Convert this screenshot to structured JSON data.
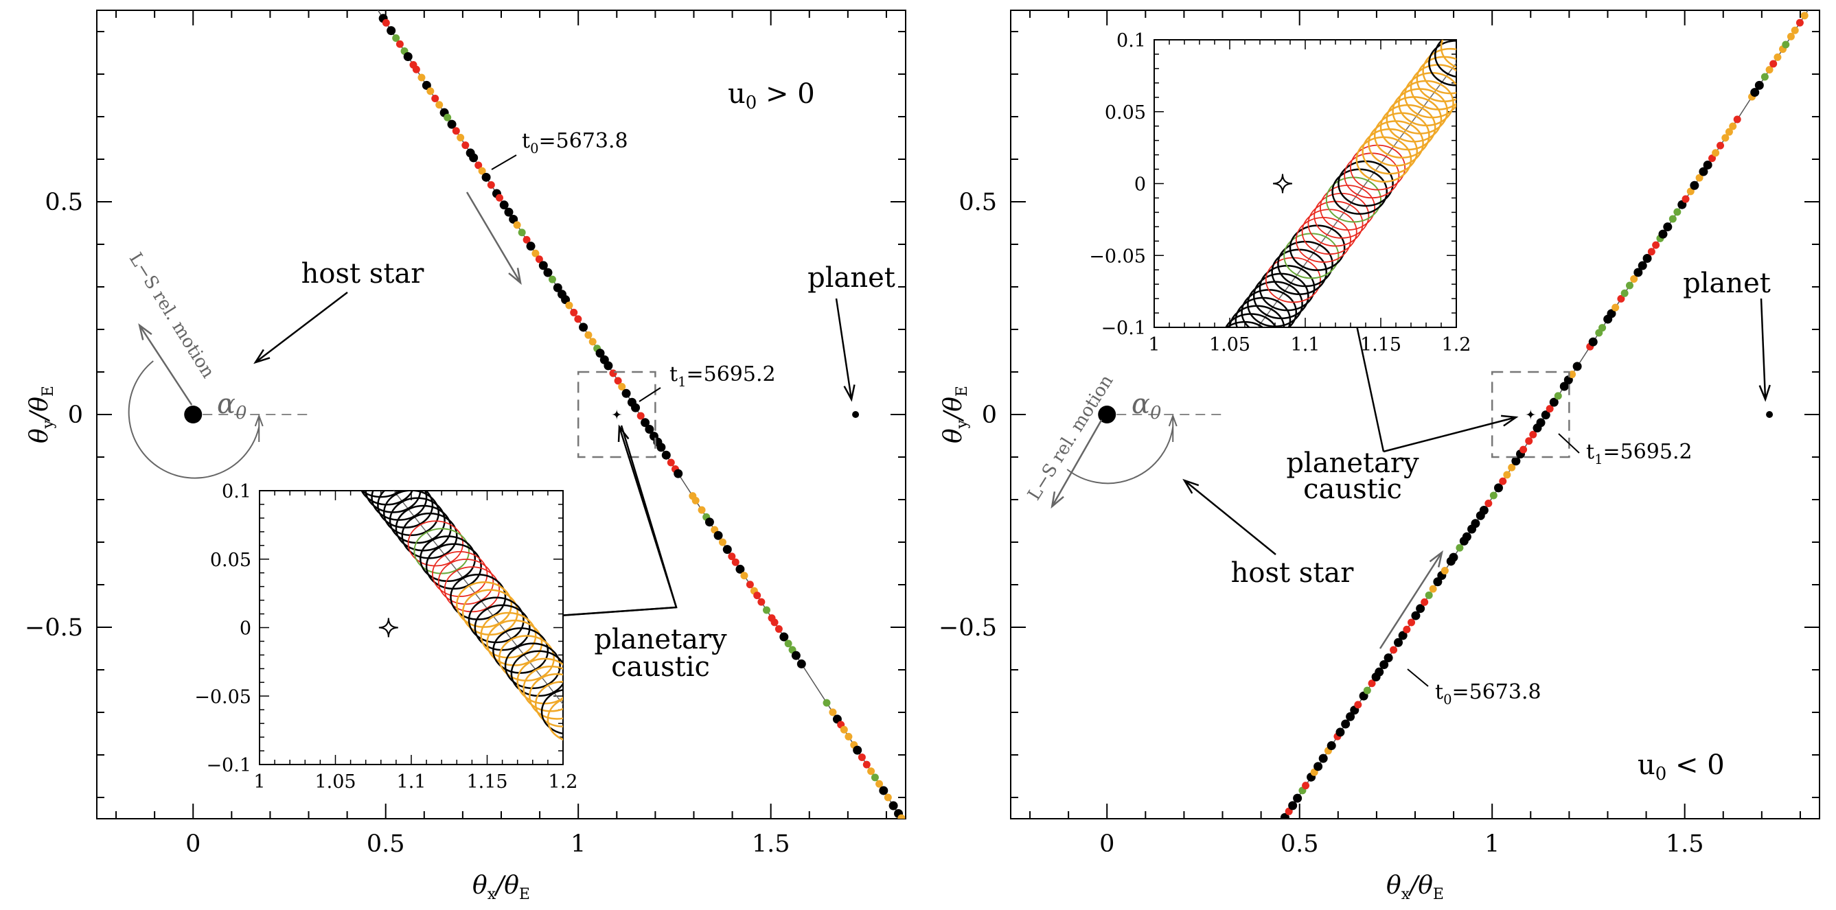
{
  "chart_data": [
    {
      "type": "scatter",
      "panel": "left",
      "xlabel": "θx/θE",
      "ylabel": "θy/θE",
      "xlim": [
        -0.25,
        1.85
      ],
      "ylim": [
        -0.95,
        0.95
      ],
      "xticks": [
        "0",
        "0.5",
        "1",
        "1.5"
      ],
      "yticks": [
        "−0.5",
        "0",
        "0.5"
      ],
      "trajectory": {
        "x0": 0.48,
        "y0": 0.95,
        "x1": 1.84,
        "y1": -0.95
      },
      "colors": {
        "black": "#000000",
        "red": "#e8281e",
        "green": "#6aa83a",
        "orange": "#f0a828",
        "gray": "#666666"
      },
      "annotations": {
        "u0": "u0 > 0",
        "t0": "t0=5673.8",
        "t1": "t1=5695.2",
        "host_star": "host star",
        "planet": "planet",
        "rel_motion": "L−S rel. motion",
        "alpha": "α0",
        "caustic_line1": "planetary",
        "caustic_line2": "caustic"
      },
      "host": {
        "x": 0,
        "y": 0
      },
      "planet": {
        "x": 1.72,
        "y": 0
      },
      "inset": {
        "xlim": [
          1.0,
          1.2
        ],
        "ylim": [
          -0.1,
          0.1
        ],
        "xticks": [
          "1",
          "1.05",
          "1.1",
          "1.15",
          "1.2"
        ],
        "yticks": [
          "0.1",
          "0.05",
          "0",
          "−0.05",
          "−0.1"
        ]
      }
    },
    {
      "type": "scatter",
      "panel": "right",
      "xlabel": "θx/θE",
      "ylabel": "θy/θE",
      "xlim": [
        -0.25,
        1.85
      ],
      "ylim": [
        -0.95,
        0.95
      ],
      "xticks": [
        "0",
        "0.5",
        "1",
        "1.5"
      ],
      "yticks": [
        "−0.5",
        "0",
        "0.5"
      ],
      "trajectory": {
        "x0": 0.46,
        "y0": -0.95,
        "x1": 1.82,
        "y1": 0.95
      },
      "annotations": {
        "u0": "u0 < 0",
        "t0": "t0=5673.8",
        "t1": "t1=5695.2",
        "host_star": "host star",
        "planet": "planet",
        "rel_motion": "L−S rel. motion",
        "alpha": "α0",
        "caustic_line1": "planetary",
        "caustic_line2": "caustic"
      },
      "host": {
        "x": 0,
        "y": 0
      },
      "planet": {
        "x": 1.72,
        "y": 0
      },
      "inset": {
        "xlim": [
          1.0,
          1.2
        ],
        "ylim": [
          -0.1,
          0.1
        ],
        "xticks": [
          "1",
          "1.05",
          "1.1",
          "1.15",
          "1.2"
        ],
        "yticks": [
          "0.1",
          "0.05",
          "0",
          "−0.05",
          "−0.1"
        ]
      }
    }
  ]
}
